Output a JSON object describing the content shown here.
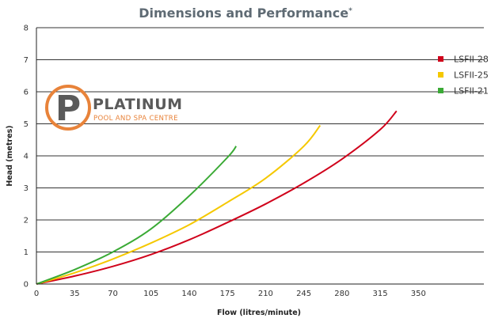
{
  "title": "Dimensions and Performance",
  "title_mark": "*",
  "logo": {
    "main_text": "PLATINUM",
    "sub_text": "POOL AND SPA CENTRE",
    "letter": "P",
    "ring_color": "#e8833a",
    "letter_color": "#5a5a5a"
  },
  "colors": {
    "grid": "#333333",
    "axis": "#222222"
  },
  "chart_data": {
    "type": "line",
    "xlabel": "Flow (litres/minute)",
    "ylabel": "Head (metres)",
    "xlim": [
      0,
      410
    ],
    "ylim": [
      0,
      8
    ],
    "xticks": [
      0,
      35,
      70,
      105,
      140,
      175,
      210,
      245,
      280,
      315,
      350
    ],
    "yticks": [
      0,
      1,
      2,
      3,
      4,
      5,
      6,
      7,
      8
    ],
    "grid": "horizontal",
    "legend_position": "top-right",
    "series": [
      {
        "name": "LSFII-28",
        "color": "#d0021b",
        "x": [
          0,
          35,
          70,
          105,
          140,
          175,
          210,
          245,
          280,
          315,
          330
        ],
        "y": [
          0,
          0.25,
          0.55,
          0.92,
          1.38,
          1.92,
          2.5,
          3.15,
          3.9,
          4.82,
          5.4
        ]
      },
      {
        "name": "LSFII-25",
        "color": "#f5c800",
        "x": [
          0,
          35,
          70,
          105,
          140,
          175,
          210,
          245,
          260
        ],
        "y": [
          0,
          0.35,
          0.78,
          1.28,
          1.85,
          2.55,
          3.3,
          4.3,
          4.95
        ]
      },
      {
        "name": "LSFII-21",
        "color": "#3aaa35",
        "x": [
          0,
          35,
          70,
          105,
          140,
          175,
          183
        ],
        "y": [
          0,
          0.45,
          1.0,
          1.72,
          2.75,
          3.95,
          4.3
        ]
      }
    ]
  }
}
